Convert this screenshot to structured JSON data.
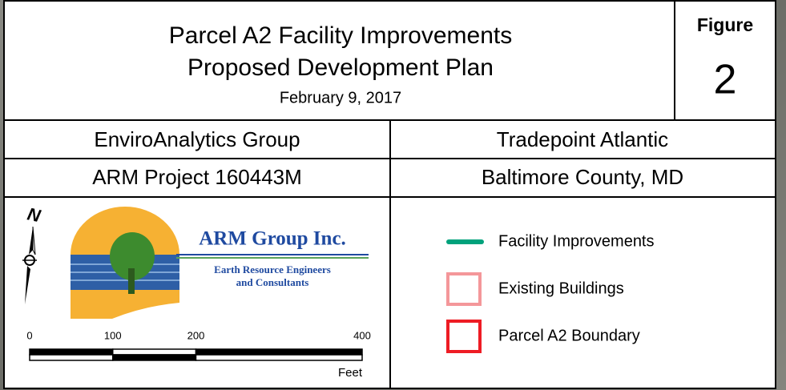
{
  "title_block": {
    "title_line_1": "Parcel A2 Facility Improvements",
    "title_line_2": "Proposed Development Plan",
    "date": "February 9, 2017",
    "figure_label": "Figure",
    "figure_number": "2",
    "client": "EnviroAnalytics Group",
    "site_owner": "Tradepoint Atlantic",
    "project": "ARM Project 160443M",
    "location": "Baltimore County, MD"
  },
  "logo": {
    "company": "ARM Group Inc.",
    "tagline_1": "Earth Resource Engineers",
    "tagline_2": "and Consultants"
  },
  "north_label": "N",
  "scale_bar": {
    "ticks": [
      0,
      100,
      200,
      400
    ],
    "unit": "Feet"
  },
  "legend": [
    {
      "label": "Facility Improvements",
      "kind": "line",
      "color": "#00a27c"
    },
    {
      "label": "Existing Buildings",
      "kind": "box",
      "color": "#f4979a"
    },
    {
      "label": "Parcel A2 Boundary",
      "kind": "box",
      "color": "#ee1c24"
    }
  ]
}
